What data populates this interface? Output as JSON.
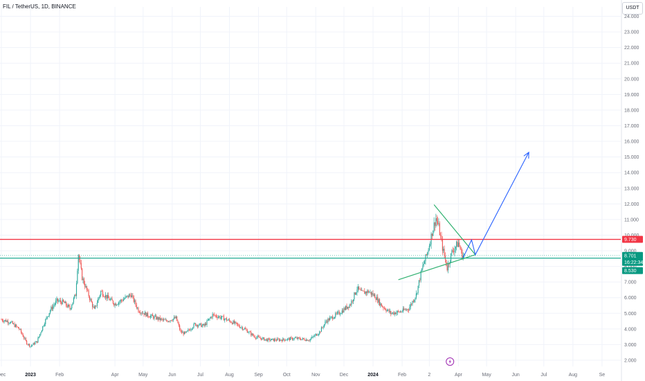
{
  "header": {
    "symbol_label": "FIL / TetherUS, 1D, BINANCE",
    "unit_label": "USDT"
  },
  "price_badges": {
    "resistance": "9.730",
    "last_price": "8.701",
    "countdown": "16:22:34",
    "support": "8.530"
  },
  "colors": {
    "up": "#26a69a",
    "down": "#ef5350",
    "resistance_line": "#f23645",
    "support_line": "#22ab94",
    "triangle": "#2fb06f",
    "arrow": "#2962ff",
    "grid": "#f0f3fa",
    "axis_text": "#6a6d78",
    "event_marker": "#9c27b0"
  },
  "icons": {
    "event_marker": "lightning-icon"
  },
  "chart_data": {
    "type": "candlestick",
    "title": "FIL / TetherUS, 1D, BINANCE",
    "ylim": [
      1.6,
      24.6
    ],
    "y_ticks": [
      "2.000",
      "3.000",
      "4.000",
      "5.000",
      "6.000",
      "7.000",
      "8.000",
      "9.000",
      "10.000",
      "11.000",
      "12.000",
      "13.000",
      "14.000",
      "15.000",
      "16.000",
      "17.000",
      "18.000",
      "19.000",
      "20.000",
      "21.000",
      "22.000",
      "23.000",
      "24.000"
    ],
    "x_range": [
      "2022-12-01",
      "2024-09-15"
    ],
    "x_ticks": [
      {
        "date": "2022-12-01",
        "label": "Dec"
      },
      {
        "date": "2023-01-01",
        "label": "2023",
        "bold": true
      },
      {
        "date": "2023-02-01",
        "label": "Feb"
      },
      {
        "date": "2023-04-01",
        "label": "Apr"
      },
      {
        "date": "2023-05-01",
        "label": "May"
      },
      {
        "date": "2023-06-01",
        "label": "Jun"
      },
      {
        "date": "2023-07-01",
        "label": "Jul"
      },
      {
        "date": "2023-08-01",
        "label": "Aug"
      },
      {
        "date": "2023-09-01",
        "label": "Sep"
      },
      {
        "date": "2023-10-01",
        "label": "Oct"
      },
      {
        "date": "2023-11-01",
        "label": "Nov"
      },
      {
        "date": "2023-12-01",
        "label": "Dec"
      },
      {
        "date": "2024-01-01",
        "label": "2024",
        "bold": true
      },
      {
        "date": "2024-02-01",
        "label": "Feb"
      },
      {
        "date": "2024-03-01",
        "label": "2"
      },
      {
        "date": "2024-04-01",
        "label": "Apr"
      },
      {
        "date": "2024-05-01",
        "label": "May"
      },
      {
        "date": "2024-06-01",
        "label": "Jun"
      },
      {
        "date": "2024-07-01",
        "label": "Jul"
      },
      {
        "date": "2024-08-01",
        "label": "Aug"
      },
      {
        "date": "2024-09-01",
        "label": "Se"
      }
    ],
    "close_path": [
      [
        "2022-12-01",
        4.6
      ],
      [
        "2022-12-10",
        4.45
      ],
      [
        "2022-12-20",
        4.0
      ],
      [
        "2022-12-28",
        3.1
      ],
      [
        "2023-01-01",
        2.9
      ],
      [
        "2023-01-08",
        3.2
      ],
      [
        "2023-01-15",
        4.3
      ],
      [
        "2023-01-22",
        5.2
      ],
      [
        "2023-01-29",
        5.8
      ],
      [
        "2023-02-05",
        5.7
      ],
      [
        "2023-02-12",
        5.3
      ],
      [
        "2023-02-18",
        6.2
      ],
      [
        "2023-02-21",
        8.8
      ],
      [
        "2023-02-25",
        7.3
      ],
      [
        "2023-03-03",
        6.3
      ],
      [
        "2023-03-10",
        5.2
      ],
      [
        "2023-03-17",
        6.4
      ],
      [
        "2023-03-24",
        6.0
      ],
      [
        "2023-04-01",
        5.6
      ],
      [
        "2023-04-10",
        5.9
      ],
      [
        "2023-04-18",
        6.2
      ],
      [
        "2023-04-26",
        5.2
      ],
      [
        "2023-05-05",
        4.9
      ],
      [
        "2023-05-15",
        4.7
      ],
      [
        "2023-05-25",
        4.5
      ],
      [
        "2023-06-05",
        4.7
      ],
      [
        "2023-06-10",
        3.8
      ],
      [
        "2023-06-15",
        3.7
      ],
      [
        "2023-06-25",
        4.3
      ],
      [
        "2023-07-05",
        4.2
      ],
      [
        "2023-07-14",
        4.9
      ],
      [
        "2023-07-25",
        4.7
      ],
      [
        "2023-08-05",
        4.4
      ],
      [
        "2023-08-17",
        4.0
      ],
      [
        "2023-08-28",
        3.5
      ],
      [
        "2023-09-10",
        3.3
      ],
      [
        "2023-09-25",
        3.3
      ],
      [
        "2023-10-10",
        3.4
      ],
      [
        "2023-10-25",
        3.3
      ],
      [
        "2023-11-05",
        3.8
      ],
      [
        "2023-11-12",
        4.5
      ],
      [
        "2023-11-20",
        4.8
      ],
      [
        "2023-11-28",
        5.1
      ],
      [
        "2023-12-08",
        5.6
      ],
      [
        "2023-12-15",
        6.6
      ],
      [
        "2023-12-20",
        6.3
      ],
      [
        "2023-12-27",
        6.4
      ],
      [
        "2024-01-03",
        6.1
      ],
      [
        "2024-01-10",
        5.5
      ],
      [
        "2024-01-20",
        5.0
      ],
      [
        "2024-01-30",
        5.1
      ],
      [
        "2024-02-08",
        5.3
      ],
      [
        "2024-02-16",
        6.2
      ],
      [
        "2024-02-22",
        7.8
      ],
      [
        "2024-02-28",
        8.9
      ],
      [
        "2024-03-04",
        10.2
      ],
      [
        "2024-03-08",
        11.1
      ],
      [
        "2024-03-11",
        10.5
      ],
      [
        "2024-03-15",
        9.2
      ],
      [
        "2024-03-20",
        7.9
      ],
      [
        "2024-03-25",
        8.9
      ],
      [
        "2024-03-28",
        9.2
      ],
      [
        "2024-04-01",
        9.5
      ],
      [
        "2024-04-05",
        8.7
      ],
      [
        "2024-04-07",
        8.7
      ]
    ],
    "support_level": 8.53,
    "resistance_level": 9.73,
    "last_price": 8.701,
    "triangle": {
      "upper": [
        [
          "2024-03-06",
          11.95
        ],
        [
          "2024-04-19",
          8.75
        ]
      ],
      "lower": [
        [
          "2024-01-28",
          7.15
        ],
        [
          "2024-04-19",
          8.75
        ]
      ]
    },
    "projection": [
      [
        "2024-04-06",
        8.55
      ],
      [
        "2024-04-15",
        9.7
      ],
      [
        "2024-04-19",
        8.75
      ],
      [
        "2024-06-15",
        15.3
      ]
    ],
    "event_marker_date": "2024-03-23",
    "series": [
      {
        "name": "FIL / TetherUS",
        "values": []
      }
    ]
  }
}
